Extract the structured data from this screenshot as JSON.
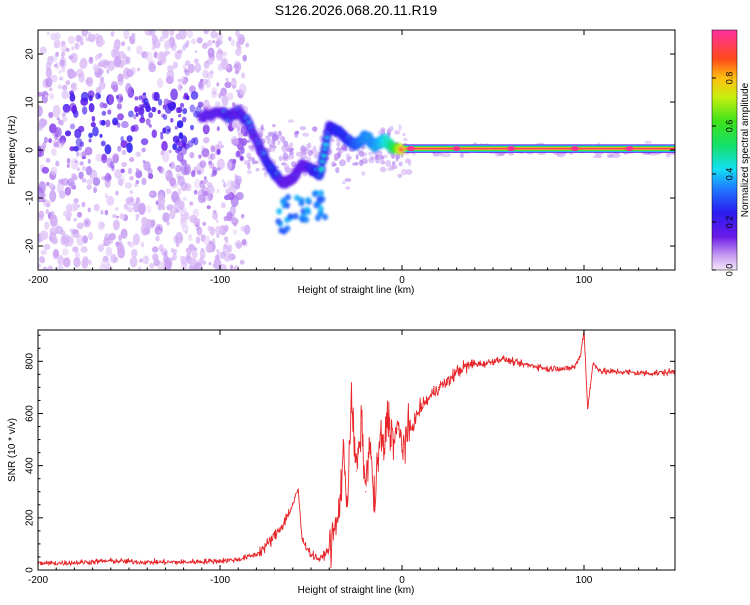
{
  "figure": {
    "title": "S126.2026.068.20.11.R19"
  },
  "chart_data": [
    {
      "type": "heatmap",
      "name": "spectrogram",
      "xlabel": "Height of straight line (km)",
      "ylabel": "Frequency (Hz)",
      "xlim": [
        -200,
        150
      ],
      "ylim": [
        -25,
        25
      ],
      "xticks": [
        -200,
        -100,
        0,
        100
      ],
      "yticks": [
        -20,
        -10,
        0,
        10,
        20
      ],
      "colorbar": {
        "label": "Normalized spectral amplitude",
        "range": [
          0,
          1
        ],
        "ticks": [
          0.0,
          0.2,
          0.4,
          0.6,
          0.8
        ],
        "tick_labels": [
          "0.0",
          "0.2",
          "0.4",
          "0.6",
          "0.8"
        ]
      },
      "ridge": {
        "x": [
          -110,
          -100,
          -95,
          -90,
          -85,
          -80,
          -75,
          -70,
          -65,
          -60,
          -55,
          -50,
          -45,
          -40,
          -35,
          -30,
          -25,
          -20,
          -15,
          -10,
          -5,
          0,
          150
        ],
        "y": [
          7,
          8,
          7,
          8,
          6,
          2,
          -2,
          -5,
          -7,
          -6,
          -3,
          -4,
          -5,
          5,
          4,
          2,
          1,
          3,
          1,
          2,
          0.5,
          0.3,
          0.3
        ],
        "amplitude": [
          0.3,
          0.35,
          0.4,
          0.35,
          0.4,
          0.35,
          0.4,
          0.45,
          0.35,
          0.3,
          0.3,
          0.4,
          0.45,
          0.4,
          0.45,
          0.45,
          0.5,
          0.55,
          0.55,
          0.6,
          0.7,
          0.95,
          0.95
        ]
      }
    },
    {
      "type": "line",
      "name": "snr",
      "xlabel": "Height of straight line (km)",
      "ylabel": "SNR (10 * v/v)",
      "xlim": [
        -200,
        150
      ],
      "ylim": [
        0,
        920
      ],
      "xticks": [
        -200,
        -100,
        0,
        100
      ],
      "yticks": [
        0,
        200,
        400,
        600,
        800
      ],
      "color": "#e8262a",
      "series": [
        {
          "name": "SNR",
          "x": [
            -200,
            -180,
            -160,
            -140,
            -120,
            -100,
            -90,
            -80,
            -75,
            -70,
            -65,
            -60,
            -57,
            -55,
            -50,
            -45,
            -40,
            -35,
            -32,
            -30,
            -28,
            -25,
            -22,
            -20,
            -18,
            -15,
            -12,
            -10,
            -8,
            -5,
            -2,
            0,
            5,
            10,
            15,
            20,
            25,
            30,
            35,
            40,
            45,
            50,
            55,
            60,
            65,
            70,
            75,
            80,
            85,
            90,
            95,
            98,
            100,
            102,
            105,
            110,
            120,
            130,
            140,
            150
          ],
          "y": [
            25,
            28,
            35,
            30,
            30,
            35,
            40,
            60,
            90,
            130,
            180,
            250,
            310,
            120,
            60,
            40,
            80,
            200,
            450,
            250,
            650,
            380,
            560,
            300,
            500,
            250,
            520,
            450,
            600,
            500,
            540,
            480,
            540,
            620,
            660,
            700,
            720,
            760,
            780,
            790,
            790,
            800,
            810,
            800,
            790,
            785,
            780,
            770,
            775,
            770,
            780,
            820,
            920,
            620,
            790,
            760,
            760,
            755,
            755,
            760
          ]
        }
      ]
    }
  ]
}
